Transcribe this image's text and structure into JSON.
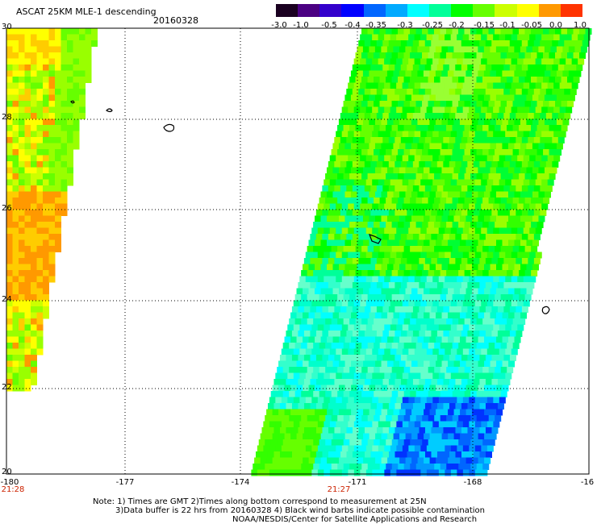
{
  "header": {
    "title": "ASCAT 25KM MLE-1 descending",
    "date": "20160328"
  },
  "colorbar": {
    "labels": [
      "-3.0",
      "-1.0",
      "-0.5",
      "-0.4",
      "-0.35",
      "-0.3",
      "-0.25",
      "-0.2",
      "-0.15",
      "-0.1",
      "-0.05",
      "0.0",
      "1.0"
    ],
    "colors": [
      "#1a0020",
      "#4b0082",
      "#3300cc",
      "#0000ff",
      "#0066ff",
      "#00aaff",
      "#00ffff",
      "#00ff99",
      "#00ff00",
      "#66ff00",
      "#ccff00",
      "#ffff00",
      "#ff9900",
      "#ff3300"
    ]
  },
  "axes": {
    "lat_labels": [
      "30",
      "28",
      "26",
      "24",
      "22",
      "20"
    ],
    "lon_labels": [
      "-180",
      "-177",
      "-174",
      "-171",
      "-168",
      "-16"
    ],
    "time_labels": [
      "21:28",
      "21:27"
    ]
  },
  "notes": [
    "Note: 1) Times are GMT 2)Times along bottom correspond to measurement at 25N",
    "3)Data buffer is 22 hrs from 20160328 4) Black wind barbs indicate possible contamination",
    "NOAA/NESDIS/Center for Satellite Applications and Research"
  ],
  "colors": {
    "time_label": "#cc2200",
    "background": "#ffffff"
  }
}
